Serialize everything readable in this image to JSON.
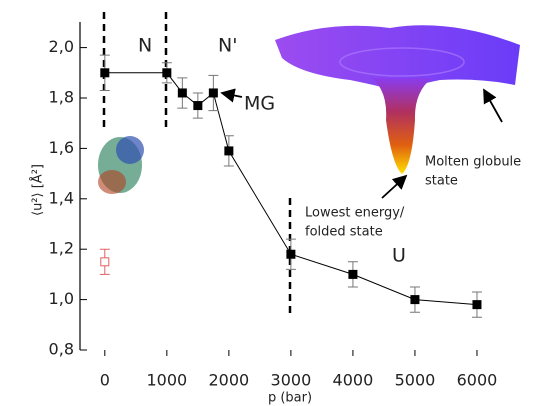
{
  "chart_data": {
    "type": "line",
    "y_label": "⟨u²⟩ [Å²]",
    "x_label": "p (bar)",
    "xlim": [
      -400,
      7000
    ],
    "ylim": [
      0.8,
      2.1
    ],
    "xticks": [
      0,
      1000,
      2000,
      3000,
      4000,
      5000,
      6000
    ],
    "yticks": [
      {
        "value": 0.8,
        "label": "0,8"
      },
      {
        "value": 1.0,
        "label": "1,0"
      },
      {
        "value": 1.2,
        "label": "1,2"
      },
      {
        "value": 1.4,
        "label": "1,4"
      },
      {
        "value": 1.6,
        "label": "1,6"
      },
      {
        "value": 1.8,
        "label": "1,8"
      },
      {
        "value": 2.0,
        "label": "2,0"
      }
    ],
    "series": [
      {
        "color": "#000000",
        "marker": "filled",
        "line": true,
        "x": [
          0,
          1000,
          1250,
          1500,
          1750,
          2000,
          3000,
          4000,
          5000,
          6000
        ],
        "values": [
          1.9,
          1.9,
          1.82,
          1.77,
          1.82,
          1.59,
          1.18,
          1.1,
          1.0,
          0.98
        ],
        "errors": [
          0.07,
          0.04,
          0.06,
          0.05,
          0.07,
          0.06,
          0.06,
          0.05,
          0.05,
          0.05
        ]
      },
      {
        "color": "#e06060",
        "marker": "open",
        "line": false,
        "x": [
          0
        ],
        "values": [
          1.15
        ],
        "errors": [
          0.05
        ]
      }
    ],
    "annotations": [
      "N",
      "N'",
      "MG",
      "U",
      "Molten globule",
      "state",
      "Lowest energy/",
      "folded state"
    ]
  }
}
